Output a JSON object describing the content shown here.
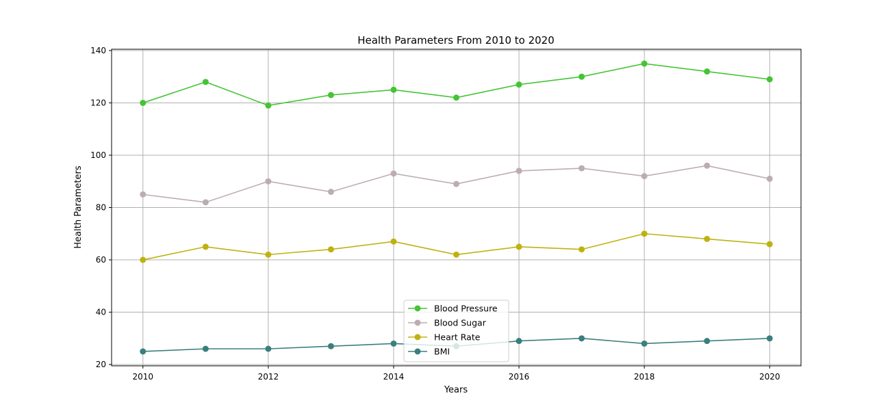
{
  "chart_data": {
    "type": "line",
    "title": "Health Parameters From 2010 to 2020",
    "xlabel": "Years",
    "ylabel": "Health Parameters",
    "x": [
      2010,
      2011,
      2012,
      2013,
      2014,
      2015,
      2016,
      2017,
      2018,
      2019,
      2020
    ],
    "xticks": [
      2010,
      2012,
      2014,
      2016,
      2018,
      2020
    ],
    "yticks": [
      20,
      40,
      60,
      80,
      100,
      120,
      140
    ],
    "xlim": [
      2009.5,
      2020.5
    ],
    "ylim": [
      19.5,
      140.5
    ],
    "grid": true,
    "legend_position": "lower-center",
    "series": [
      {
        "name": "Blood Pressure",
        "color": "#44c435",
        "values": [
          120,
          128,
          119,
          123,
          125,
          122,
          127,
          130,
          135,
          132,
          129
        ]
      },
      {
        "name": "Blood Sugar",
        "color": "#bcadb0",
        "values": [
          85,
          82,
          90,
          86,
          93,
          89,
          94,
          95,
          92,
          96,
          91
        ]
      },
      {
        "name": "Heart Rate",
        "color": "#bfb210",
        "values": [
          60,
          65,
          62,
          64,
          67,
          62,
          65,
          64,
          70,
          68,
          66
        ]
      },
      {
        "name": "BMI",
        "color": "#3a7f7e",
        "values": [
          25,
          26,
          26,
          27,
          28,
          27,
          29,
          30,
          28,
          29,
          30
        ]
      }
    ]
  }
}
